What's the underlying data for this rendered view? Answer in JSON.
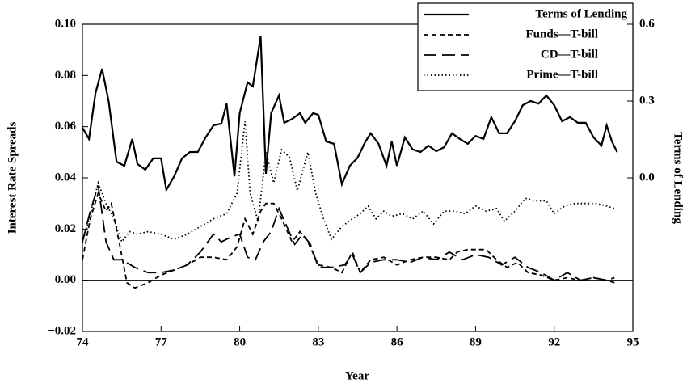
{
  "chart_data": {
    "type": "line",
    "xlabel": "Year",
    "ylabel": "Interest Rate Spreads",
    "y2label": "Terms of Lending",
    "xlim": [
      74,
      95
    ],
    "xticks": [
      74,
      77,
      80,
      83,
      86,
      89,
      92,
      95
    ],
    "ylim": [
      -0.02,
      0.1
    ],
    "yticks": [
      {
        "value": -0.02,
        "label": "−0.02"
      },
      {
        "value": 0,
        "label": "0.00"
      },
      {
        "value": 0.02,
        "label": "0.02"
      },
      {
        "value": 0.04,
        "label": "0.04"
      },
      {
        "value": 0.06,
        "label": "0.06"
      },
      {
        "value": 0.08,
        "label": "0.08"
      },
      {
        "value": 0.1,
        "label": "0.10"
      }
    ],
    "y2lim": [
      -0.6,
      0.6
    ],
    "y2ticks": [
      {
        "value": 0,
        "label": "0.0"
      },
      0.3,
      0.6
    ],
    "hline": 0,
    "legend": "upper right",
    "series": [
      {
        "name": "Terms of Lending",
        "color": "#000000",
        "dash": "solid",
        "axis": "y2",
        "x": [
          74.0,
          74.25,
          74.5,
          74.75,
          75.0,
          75.3,
          75.6,
          75.9,
          76.1,
          76.4,
          76.7,
          77.0,
          77.2,
          77.5,
          77.8,
          78.1,
          78.4,
          78.7,
          79.0,
          79.3,
          79.5,
          79.8,
          80.0,
          80.3,
          80.5,
          80.8,
          81.0,
          81.2,
          81.5,
          81.7,
          82.0,
          82.3,
          82.5,
          82.8,
          83.0,
          83.3,
          83.6,
          83.9,
          84.2,
          84.5,
          84.8,
          85.0,
          85.3,
          85.6,
          85.8,
          86.0,
          86.3,
          86.6,
          86.9,
          87.2,
          87.5,
          87.8,
          88.1,
          88.4,
          88.7,
          89.0,
          89.3,
          89.6,
          89.9,
          90.2,
          90.5,
          90.8,
          91.1,
          91.4,
          91.7,
          92.0,
          92.3,
          92.6,
          92.9,
          93.2,
          93.5,
          93.8,
          94.0,
          94.2,
          94.4
        ],
        "values": [
          0.196,
          0.152,
          0.332,
          0.426,
          0.3,
          0.063,
          0.047,
          0.152,
          0.054,
          0.032,
          0.076,
          0.076,
          -0.047,
          0.006,
          0.076,
          0.101,
          0.101,
          0.158,
          0.205,
          0.212,
          0.29,
          0.006,
          0.253,
          0.373,
          0.357,
          0.553,
          0.016,
          0.253,
          0.322,
          0.215,
          0.23,
          0.253,
          0.215,
          0.253,
          0.246,
          0.142,
          0.133,
          -0.025,
          0.047,
          0.079,
          0.142,
          0.174,
          0.133,
          0.047,
          0.142,
          0.047,
          0.158,
          0.111,
          0.101,
          0.126,
          0.104,
          0.12,
          0.174,
          0.152,
          0.133,
          0.164,
          0.152,
          0.237,
          0.174,
          0.174,
          0.221,
          0.284,
          0.3,
          0.29,
          0.322,
          0.284,
          0.221,
          0.237,
          0.215,
          0.215,
          0.158,
          0.126,
          0.205,
          0.142,
          0.101
        ]
      },
      {
        "name": "Funds—T-bill",
        "color": "#000000",
        "dash": "dashed",
        "x": [
          74.0,
          74.3,
          74.6,
          74.9,
          75.1,
          75.4,
          75.7,
          76.0,
          76.5,
          77.0,
          77.5,
          78.0,
          78.5,
          79.0,
          79.5,
          79.9,
          80.2,
          80.5,
          80.8,
          81.0,
          81.3,
          81.6,
          82.0,
          82.3,
          82.6,
          83.0,
          83.5,
          83.9,
          84.3,
          84.6,
          85.0,
          85.5,
          86.0,
          86.5,
          87.0,
          87.5,
          88.0,
          88.3,
          88.7,
          89.0,
          89.4,
          89.8,
          90.2,
          90.6,
          91.0,
          91.5,
          92.0,
          92.5,
          93.0,
          93.5,
          94.0,
          94.3
        ],
        "values": [
          0.008,
          0.024,
          0.034,
          0.027,
          0.03,
          0.015,
          -0.001,
          -0.003,
          -0.001,
          0.002,
          0.004,
          0.006,
          0.009,
          0.009,
          0.008,
          0.013,
          0.024,
          0.018,
          0.027,
          0.03,
          0.03,
          0.024,
          0.015,
          0.019,
          0.015,
          0.006,
          0.005,
          0.003,
          0.011,
          0.003,
          0.008,
          0.009,
          0.006,
          0.008,
          0.009,
          0.009,
          0.008,
          0.011,
          0.012,
          0.012,
          0.012,
          0.008,
          0.005,
          0.007,
          0.003,
          0.002,
          0.0,
          0.001,
          0.0,
          0.001,
          0.0,
          -0.001
        ]
      },
      {
        "name": "CD—T-bill",
        "color": "#000000",
        "dash": "longdash",
        "x": [
          74.0,
          74.3,
          74.6,
          74.9,
          75.2,
          75.5,
          76.0,
          76.5,
          77.0,
          77.5,
          78.0,
          78.5,
          79.0,
          79.3,
          79.7,
          80.0,
          80.3,
          80.6,
          80.9,
          81.2,
          81.5,
          81.8,
          82.1,
          82.4,
          82.7,
          83.0,
          83.5,
          84.0,
          84.3,
          84.6,
          85.0,
          85.5,
          86.0,
          86.5,
          87.0,
          87.5,
          88.0,
          88.5,
          89.0,
          89.5,
          90.0,
          90.5,
          91.0,
          91.5,
          92.0,
          92.5,
          93.0,
          93.5,
          94.0,
          94.3
        ],
        "values": [
          0.015,
          0.027,
          0.037,
          0.015,
          0.008,
          0.008,
          0.005,
          0.003,
          0.003,
          0.004,
          0.006,
          0.011,
          0.018,
          0.015,
          0.017,
          0.018,
          0.009,
          0.008,
          0.015,
          0.019,
          0.028,
          0.021,
          0.014,
          0.018,
          0.014,
          0.005,
          0.005,
          0.006,
          0.01,
          0.003,
          0.007,
          0.008,
          0.008,
          0.007,
          0.009,
          0.008,
          0.011,
          0.008,
          0.01,
          0.009,
          0.006,
          0.009,
          0.005,
          0.003,
          0.0,
          0.003,
          0.0,
          0.001,
          0.0,
          0.001
        ]
      },
      {
        "name": "Prime—T-bill",
        "color": "#000000",
        "dash": "dotted",
        "x": [
          74.0,
          74.3,
          74.6,
          74.9,
          75.2,
          75.5,
          75.8,
          76.1,
          76.5,
          77.0,
          77.5,
          78.0,
          78.5,
          79.0,
          79.5,
          79.9,
          80.2,
          80.4,
          80.7,
          81.0,
          81.3,
          81.6,
          81.9,
          82.2,
          82.6,
          82.9,
          83.2,
          83.5,
          83.9,
          84.3,
          84.6,
          84.9,
          85.2,
          85.5,
          85.8,
          86.2,
          86.6,
          87.0,
          87.4,
          87.8,
          88.2,
          88.6,
          89.0,
          89.4,
          89.8,
          90.1,
          90.5,
          90.9,
          91.3,
          91.7,
          92.0,
          92.4,
          92.8,
          93.2,
          93.6,
          94.0,
          94.3
        ],
        "values": [
          0.0146,
          0.0257,
          0.038,
          0.03,
          0.024,
          0.015,
          0.019,
          0.018,
          0.019,
          0.018,
          0.016,
          0.018,
          0.021,
          0.024,
          0.026,
          0.034,
          0.062,
          0.034,
          0.023,
          0.05,
          0.038,
          0.051,
          0.048,
          0.035,
          0.05,
          0.034,
          0.024,
          0.016,
          0.021,
          0.024,
          0.026,
          0.029,
          0.024,
          0.027,
          0.025,
          0.026,
          0.024,
          0.027,
          0.022,
          0.027,
          0.027,
          0.026,
          0.029,
          0.027,
          0.028,
          0.023,
          0.027,
          0.032,
          0.031,
          0.031,
          0.026,
          0.029,
          0.03,
          0.03,
          0.03,
          0.029,
          0.028
        ]
      }
    ]
  }
}
